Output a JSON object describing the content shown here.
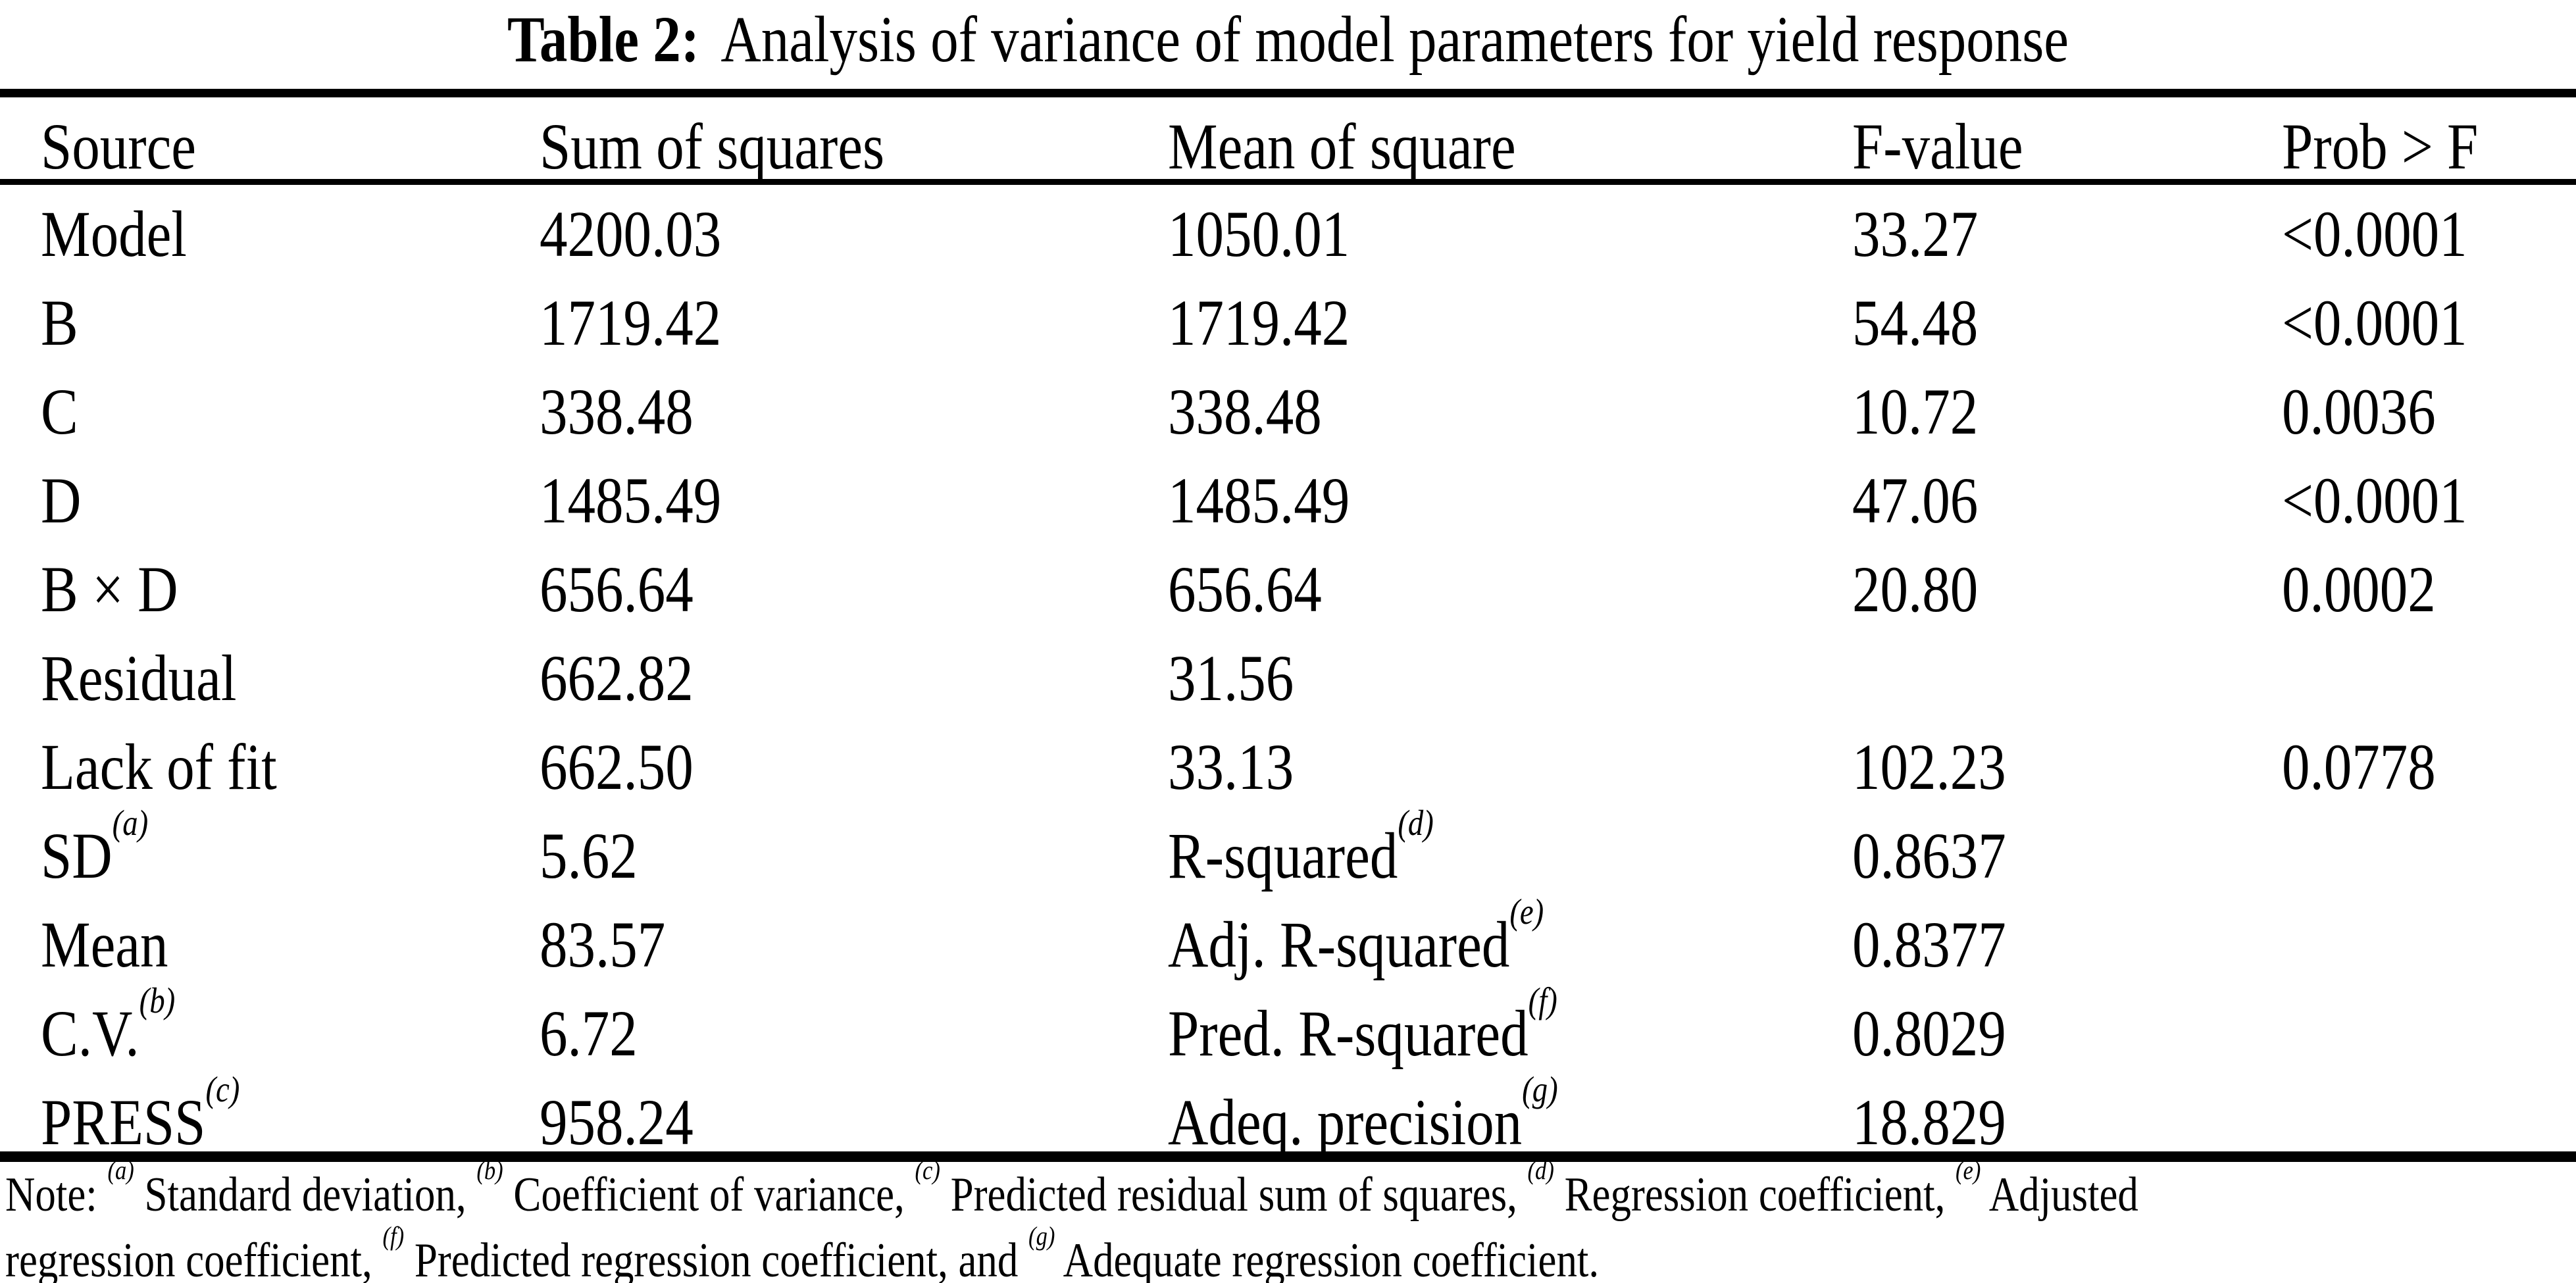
{
  "caption": {
    "label": "Table 2:",
    "text": "Analysis of variance of model parameters for yield response"
  },
  "table": {
    "columns": [
      "Source",
      "Sum of squares",
      "Mean of square",
      "F-value",
      "Prob > F"
    ],
    "rows": [
      [
        {
          "t": "Model"
        },
        {
          "t": "4200.03"
        },
        {
          "t": "1050.01"
        },
        {
          "t": "33.27"
        },
        {
          "t": "<0.0001"
        }
      ],
      [
        {
          "t": "B"
        },
        {
          "t": "1719.42"
        },
        {
          "t": "1719.42"
        },
        {
          "t": "54.48"
        },
        {
          "t": "<0.0001"
        }
      ],
      [
        {
          "t": "C"
        },
        {
          "t": "338.48"
        },
        {
          "t": "338.48"
        },
        {
          "t": "10.72"
        },
        {
          "t": "0.0036"
        }
      ],
      [
        {
          "t": "D"
        },
        {
          "t": "1485.49"
        },
        {
          "t": "1485.49"
        },
        {
          "t": "47.06"
        },
        {
          "t": "<0.0001"
        }
      ],
      [
        {
          "t": "B × D"
        },
        {
          "t": "656.64"
        },
        {
          "t": "656.64"
        },
        {
          "t": "20.80"
        },
        {
          "t": "0.0002"
        }
      ],
      [
        {
          "t": "Residual"
        },
        {
          "t": "662.82"
        },
        {
          "t": "31.56"
        },
        {
          "t": ""
        },
        {
          "t": ""
        }
      ],
      [
        {
          "t": "Lack of fit"
        },
        {
          "t": "662.50"
        },
        {
          "t": "33.13"
        },
        {
          "t": "102.23"
        },
        {
          "t": "0.0778"
        }
      ],
      [
        {
          "t": "SD",
          "s": "(a)"
        },
        {
          "t": "5.62"
        },
        {
          "t": "R-squared",
          "s": "(d)"
        },
        {
          "t": "0.8637"
        },
        {
          "t": ""
        }
      ],
      [
        {
          "t": "Mean"
        },
        {
          "t": "83.57"
        },
        {
          "t": "Adj. R-squared",
          "s": "(e)"
        },
        {
          "t": "0.8377"
        },
        {
          "t": ""
        }
      ],
      [
        {
          "t": "C.V.",
          "s": "(b)"
        },
        {
          "t": "6.72"
        },
        {
          "t": "Pred. R-squared",
          "s": "(f)"
        },
        {
          "t": "0.8029"
        },
        {
          "t": ""
        }
      ],
      [
        {
          "t": "PRESS",
          "s": "(c)"
        },
        {
          "t": "958.24"
        },
        {
          "t": "Adeq. precision",
          "s": "(g)"
        },
        {
          "t": "18.829"
        },
        {
          "t": ""
        }
      ]
    ]
  },
  "note": {
    "segments": [
      {
        "t": "Note: "
      },
      {
        "s": "(a)"
      },
      {
        "t": " Standard deviation, "
      },
      {
        "s": "(b)"
      },
      {
        "t": " Coefficient of variance, "
      },
      {
        "s": "(c)"
      },
      {
        "t": " Predicted residual sum of squares, "
      },
      {
        "s": "(d)"
      },
      {
        "t": " Regression coefficient, "
      },
      {
        "s": "(e)"
      },
      {
        "t": " Adjusted"
      },
      {
        "br": true
      },
      {
        "t": "regression coefficient, "
      },
      {
        "s": "(f)"
      },
      {
        "t": " Predicted regression coefficient, and "
      },
      {
        "s": "(g)"
      },
      {
        "t": " Adequate regression coefficient."
      }
    ]
  },
  "colors": {
    "text": "#000000",
    "background": "#ffffff"
  }
}
